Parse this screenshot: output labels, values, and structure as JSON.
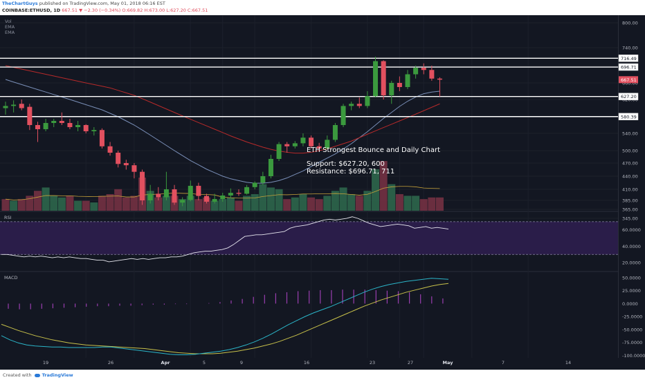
{
  "header": {
    "author": "TheChartGuys",
    "published": " published on TradingView.com, May 01, 2018 06:16 EST",
    "symbol": "COINBASE:ETHUSD, 1D",
    "last": "667.51",
    "change": "▼ −2.30 (−0.34%)",
    "ohlc": "O:669.82 H:673.00 L:627.20 C:667.51"
  },
  "footer": {
    "created_with": "Created with",
    "brand": "TradingView"
  },
  "indicator_labels": [
    "Vol",
    "EMA",
    "EMA"
  ],
  "annotation": {
    "title": "ETH Strongest Bounce and Daily Chart",
    "support": "Support: $627.20, 600",
    "resistance": "Resistance: $696.71, 711"
  },
  "colors": {
    "background": "#131722",
    "bull": "#3b9a3e",
    "bear": "#e2505f",
    "ema_fast": "#7a8fb8",
    "ema_slow": "#b82a2a",
    "rsi_band": "#2a1d49",
    "macd_line": "#2bb6c9",
    "signal_line": "#c9c24a",
    "hist": "#9a3fb0"
  },
  "chart_data": [
    {
      "type": "candlestick",
      "symbol": "COINBASE:ETHUSD",
      "timeframe": "1D",
      "x_tick_labels": [
        "19",
        "26",
        "Apr",
        "5",
        "9",
        "16",
        "23",
        "27",
        "May",
        "7",
        "14"
      ],
      "y_tick_labels": [
        "800.00",
        "740.00",
        "700.00",
        "660.00",
        "620.00",
        "580.00",
        "540.00",
        "500.00",
        "470.00",
        "440.00",
        "410.00",
        "385.00",
        "365.00",
        "345.00"
      ],
      "y_ticks": [
        800,
        740,
        700,
        660,
        620,
        580,
        540,
        500,
        470,
        440,
        410,
        385,
        365,
        345
      ],
      "ylim": [
        345,
        830
      ],
      "levels": [
        {
          "label": "716.49",
          "value": 716.49
        },
        {
          "label": "696.71",
          "value": 696.71
        },
        {
          "label": "627.20",
          "value": 627.2
        },
        {
          "label": "580.39",
          "value": 580.39
        }
      ],
      "last_price_label": "667.51",
      "candles": [
        {
          "o": 600,
          "h": 615,
          "l": 585,
          "c": 605
        },
        {
          "o": 605,
          "h": 618,
          "l": 590,
          "c": 608
        },
        {
          "o": 610,
          "h": 620,
          "l": 595,
          "c": 600
        },
        {
          "o": 603,
          "h": 610,
          "l": 548,
          "c": 560
        },
        {
          "o": 560,
          "h": 568,
          "l": 520,
          "c": 550
        },
        {
          "o": 550,
          "h": 575,
          "l": 545,
          "c": 565
        },
        {
          "o": 565,
          "h": 575,
          "l": 555,
          "c": 570
        },
        {
          "o": 570,
          "h": 590,
          "l": 560,
          "c": 565
        },
        {
          "o": 565,
          "h": 575,
          "l": 550,
          "c": 555
        },
        {
          "o": 555,
          "h": 570,
          "l": 545,
          "c": 560
        },
        {
          "o": 560,
          "h": 562,
          "l": 540,
          "c": 545
        },
        {
          "o": 545,
          "h": 555,
          "l": 535,
          "c": 548
        },
        {
          "o": 548,
          "h": 552,
          "l": 505,
          "c": 510
        },
        {
          "o": 510,
          "h": 520,
          "l": 488,
          "c": 495
        },
        {
          "o": 495,
          "h": 500,
          "l": 460,
          "c": 468
        },
        {
          "o": 470,
          "h": 478,
          "l": 455,
          "c": 465
        },
        {
          "o": 465,
          "h": 470,
          "l": 435,
          "c": 450
        },
        {
          "o": 450,
          "h": 455,
          "l": 375,
          "c": 385
        },
        {
          "o": 385,
          "h": 420,
          "l": 378,
          "c": 400
        },
        {
          "o": 400,
          "h": 415,
          "l": 385,
          "c": 392
        },
        {
          "o": 392,
          "h": 450,
          "l": 385,
          "c": 410
        },
        {
          "o": 410,
          "h": 420,
          "l": 375,
          "c": 380
        },
        {
          "o": 380,
          "h": 392,
          "l": 372,
          "c": 386
        },
        {
          "o": 386,
          "h": 430,
          "l": 383,
          "c": 418
        },
        {
          "o": 418,
          "h": 425,
          "l": 385,
          "c": 395
        },
        {
          "o": 395,
          "h": 400,
          "l": 378,
          "c": 382
        },
        {
          "o": 382,
          "h": 400,
          "l": 378,
          "c": 388
        },
        {
          "o": 388,
          "h": 402,
          "l": 382,
          "c": 396
        },
        {
          "o": 396,
          "h": 412,
          "l": 390,
          "c": 402
        },
        {
          "o": 402,
          "h": 410,
          "l": 395,
          "c": 400
        },
        {
          "o": 400,
          "h": 420,
          "l": 398,
          "c": 415
        },
        {
          "o": 415,
          "h": 428,
          "l": 410,
          "c": 425
        },
        {
          "o": 425,
          "h": 450,
          "l": 420,
          "c": 440
        },
        {
          "o": 440,
          "h": 490,
          "l": 435,
          "c": 480
        },
        {
          "o": 480,
          "h": 520,
          "l": 475,
          "c": 515
        },
        {
          "o": 515,
          "h": 520,
          "l": 495,
          "c": 510
        },
        {
          "o": 510,
          "h": 522,
          "l": 505,
          "c": 517
        },
        {
          "o": 517,
          "h": 540,
          "l": 510,
          "c": 530
        },
        {
          "o": 530,
          "h": 535,
          "l": 505,
          "c": 510
        },
        {
          "o": 510,
          "h": 518,
          "l": 498,
          "c": 505
        },
        {
          "o": 505,
          "h": 535,
          "l": 503,
          "c": 525
        },
        {
          "o": 525,
          "h": 565,
          "l": 520,
          "c": 560
        },
        {
          "o": 560,
          "h": 610,
          "l": 555,
          "c": 605
        },
        {
          "o": 605,
          "h": 615,
          "l": 595,
          "c": 610
        },
        {
          "o": 610,
          "h": 625,
          "l": 600,
          "c": 605
        },
        {
          "o": 605,
          "h": 640,
          "l": 600,
          "c": 628
        },
        {
          "o": 628,
          "h": 720,
          "l": 625,
          "c": 710
        },
        {
          "o": 710,
          "h": 712,
          "l": 620,
          "c": 630
        },
        {
          "o": 630,
          "h": 665,
          "l": 610,
          "c": 660
        },
        {
          "o": 660,
          "h": 675,
          "l": 640,
          "c": 650
        },
        {
          "o": 650,
          "h": 690,
          "l": 645,
          "c": 680
        },
        {
          "o": 680,
          "h": 700,
          "l": 670,
          "c": 695
        },
        {
          "o": 695,
          "h": 705,
          "l": 680,
          "c": 690
        },
        {
          "o": 690,
          "h": 700,
          "l": 665,
          "c": 670
        },
        {
          "o": 670,
          "h": 673,
          "l": 627.2,
          "c": 667.51
        }
      ],
      "volume": [
        {
          "v": 7,
          "up": false
        },
        {
          "v": 6,
          "up": true
        },
        {
          "v": 7,
          "up": false
        },
        {
          "v": 9,
          "up": false
        },
        {
          "v": 12,
          "up": false
        },
        {
          "v": 14,
          "up": true
        },
        {
          "v": 9,
          "up": true
        },
        {
          "v": 8,
          "up": true
        },
        {
          "v": 9,
          "up": false
        },
        {
          "v": 6,
          "up": true
        },
        {
          "v": 6,
          "up": false
        },
        {
          "v": 5,
          "up": true
        },
        {
          "v": 9,
          "up": false
        },
        {
          "v": 10,
          "up": false
        },
        {
          "v": 13,
          "up": false
        },
        {
          "v": 8,
          "up": false
        },
        {
          "v": 9,
          "up": false
        },
        {
          "v": 20,
          "up": false
        },
        {
          "v": 12,
          "up": true
        },
        {
          "v": 8,
          "up": false
        },
        {
          "v": 9,
          "up": true
        },
        {
          "v": 9,
          "up": false
        },
        {
          "v": 7,
          "up": true
        },
        {
          "v": 9,
          "up": true
        },
        {
          "v": 7,
          "up": false
        },
        {
          "v": 8,
          "up": false
        },
        {
          "v": 6,
          "up": true
        },
        {
          "v": 7,
          "up": true
        },
        {
          "v": 8,
          "up": true
        },
        {
          "v": 6,
          "up": false
        },
        {
          "v": 9,
          "up": true
        },
        {
          "v": 10,
          "up": true
        },
        {
          "v": 16,
          "up": true
        },
        {
          "v": 14,
          "up": true
        },
        {
          "v": 13,
          "up": true
        },
        {
          "v": 7,
          "up": false
        },
        {
          "v": 8,
          "up": true
        },
        {
          "v": 10,
          "up": true
        },
        {
          "v": 8,
          "up": false
        },
        {
          "v": 7,
          "up": false
        },
        {
          "v": 9,
          "up": true
        },
        {
          "v": 12,
          "up": true
        },
        {
          "v": 14,
          "up": true
        },
        {
          "v": 10,
          "up": true
        },
        {
          "v": 9,
          "up": false
        },
        {
          "v": 12,
          "up": true
        },
        {
          "v": 25,
          "up": true
        },
        {
          "v": 30,
          "up": false
        },
        {
          "v": 16,
          "up": true
        },
        {
          "v": 10,
          "up": false
        },
        {
          "v": 9,
          "up": true
        },
        {
          "v": 9,
          "up": true
        },
        {
          "v": 7,
          "up": false
        },
        {
          "v": 8,
          "up": false
        },
        {
          "v": 8,
          "up": false
        }
      ],
      "ema_fast": [
        668,
        662,
        656,
        650,
        644,
        638,
        632,
        626,
        620,
        614,
        608,
        602,
        596,
        588,
        580,
        570,
        560,
        548,
        536,
        524,
        512,
        500,
        488,
        476,
        466,
        456,
        448,
        440,
        434,
        430,
        426,
        424,
        424,
        426,
        430,
        436,
        444,
        452,
        462,
        472,
        482,
        492,
        504,
        516,
        530,
        544,
        560,
        576,
        590,
        604,
        616,
        626,
        634,
        638,
        640
      ],
      "ema_slow": [
        700,
        696,
        692,
        688,
        684,
        680,
        676,
        672,
        668,
        664,
        660,
        656,
        652,
        648,
        642,
        636,
        630,
        622,
        614,
        606,
        598,
        590,
        582,
        574,
        566,
        558,
        550,
        542,
        534,
        527,
        520,
        514,
        508,
        503,
        499,
        496,
        494,
        494,
        496,
        500,
        504,
        510,
        516,
        522,
        530,
        538,
        546,
        554,
        562,
        570,
        578,
        586,
        594,
        602,
        610
      ]
    },
    {
      "type": "line",
      "title": "RSI",
      "y_tick_labels": [
        "60.0000",
        "40.0000",
        "20.0000"
      ],
      "y_ticks": [
        60,
        40,
        20
      ],
      "ylim": [
        10,
        80
      ],
      "band": [
        30,
        70
      ],
      "values": [
        30,
        30,
        29,
        28,
        27,
        28,
        27,
        28,
        27,
        26,
        27,
        26,
        27,
        26,
        25,
        25,
        24,
        23,
        23,
        21,
        22,
        23,
        24,
        25,
        24,
        25,
        24,
        25,
        26,
        26,
        27,
        27,
        28,
        30,
        32,
        33,
        34,
        34,
        35,
        36,
        38,
        42,
        47,
        52,
        53,
        54,
        54,
        55,
        56,
        57,
        58,
        62,
        64,
        65,
        66,
        68,
        70,
        72,
        73,
        72,
        73,
        74,
        76,
        74,
        71,
        68,
        66,
        64,
        65,
        66,
        67,
        66,
        65,
        62,
        63,
        64,
        62,
        63,
        62,
        61
      ]
    },
    {
      "type": "line",
      "title": "MACD",
      "y_tick_labels": [
        "50.0000",
        "25.0000",
        "0.0000",
        "-25.0000",
        "-50.0000",
        "-75.0000",
        "-100.0000"
      ],
      "y_ticks": [
        50,
        25,
        0,
        -25,
        -50,
        -75,
        -100
      ],
      "ylim": [
        -105,
        58
      ],
      "macd": [
        -62,
        -70,
        -76,
        -80,
        -82,
        -83,
        -84,
        -84,
        -85,
        -85,
        -85,
        -85,
        -84,
        -84,
        -86,
        -88,
        -90,
        -92,
        -94,
        -96,
        -98,
        -99,
        -99,
        -98,
        -96,
        -94,
        -92,
        -89,
        -85,
        -80,
        -74,
        -67,
        -59,
        -50,
        -41,
        -33,
        -25,
        -18,
        -12,
        -6,
        1,
        8,
        15,
        22,
        28,
        33,
        37,
        40,
        43,
        45,
        47,
        49,
        48,
        47
      ],
      "signal": [
        -40,
        -46,
        -52,
        -57,
        -62,
        -66,
        -70,
        -73,
        -76,
        -78,
        -80,
        -81,
        -82,
        -83,
        -84,
        -85,
        -86,
        -87,
        -89,
        -91,
        -93,
        -95,
        -96,
        -97,
        -97,
        -97,
        -96,
        -94,
        -92,
        -89,
        -86,
        -82,
        -78,
        -73,
        -67,
        -61,
        -54,
        -47,
        -40,
        -33,
        -26,
        -19,
        -12,
        -5,
        1,
        7,
        12,
        17,
        22,
        26,
        30,
        34,
        37,
        39
      ],
      "histogram": [
        -10,
        -11,
        -11,
        -10,
        -9,
        -8,
        -7,
        -6,
        -5,
        -5,
        -4,
        -4,
        -3,
        -2,
        -2,
        -1,
        -1,
        0,
        1,
        3,
        6,
        9,
        13,
        17,
        20,
        22,
        24,
        25,
        26,
        26,
        27,
        27,
        27,
        26,
        25,
        24,
        22,
        18,
        14,
        10
      ]
    }
  ]
}
